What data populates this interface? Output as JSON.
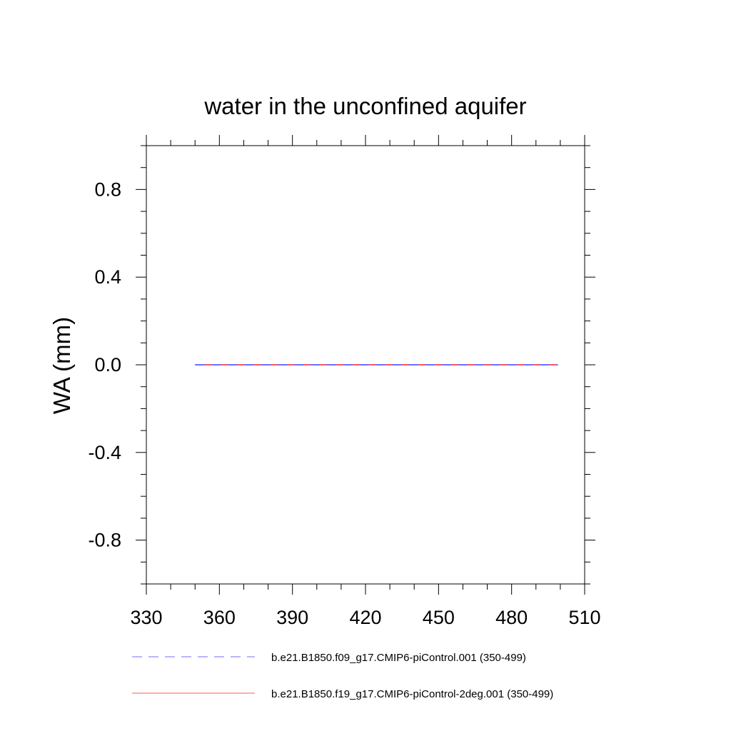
{
  "chart_data": {
    "type": "line",
    "title": "water in the unconfined aquifer",
    "ylabel": "WA  (mm)",
    "xlabel": "",
    "xlim": [
      330,
      510
    ],
    "ylim": [
      -1.0,
      1.0
    ],
    "xticks": [
      330,
      360,
      390,
      420,
      450,
      480,
      510
    ],
    "xtick_labels": [
      "330",
      "360",
      "390",
      "420",
      "450",
      "480",
      "510"
    ],
    "yticks": [
      -0.8,
      -0.4,
      0.0,
      0.4,
      0.8
    ],
    "ytick_labels": [
      "-0.8",
      "-0.4",
      "0.0",
      "0.4",
      "0.8"
    ],
    "grid": false,
    "legend_placement": "bottom",
    "series": [
      {
        "name": "b.e21.B1850.f09_g17.CMIP6-piControl.001 (350-499)",
        "color": "#6f6fff",
        "style": "dashed",
        "x": [
          350,
          499
        ],
        "y": [
          0.0,
          0.0
        ]
      },
      {
        "name": "b.e21.B1850.f19_g17.CMIP6-piControl-2deg.001 (350-499)",
        "color": "#ff5a5a",
        "style": "solid",
        "x": [
          350,
          499
        ],
        "y": [
          0.0,
          0.0
        ]
      }
    ]
  }
}
